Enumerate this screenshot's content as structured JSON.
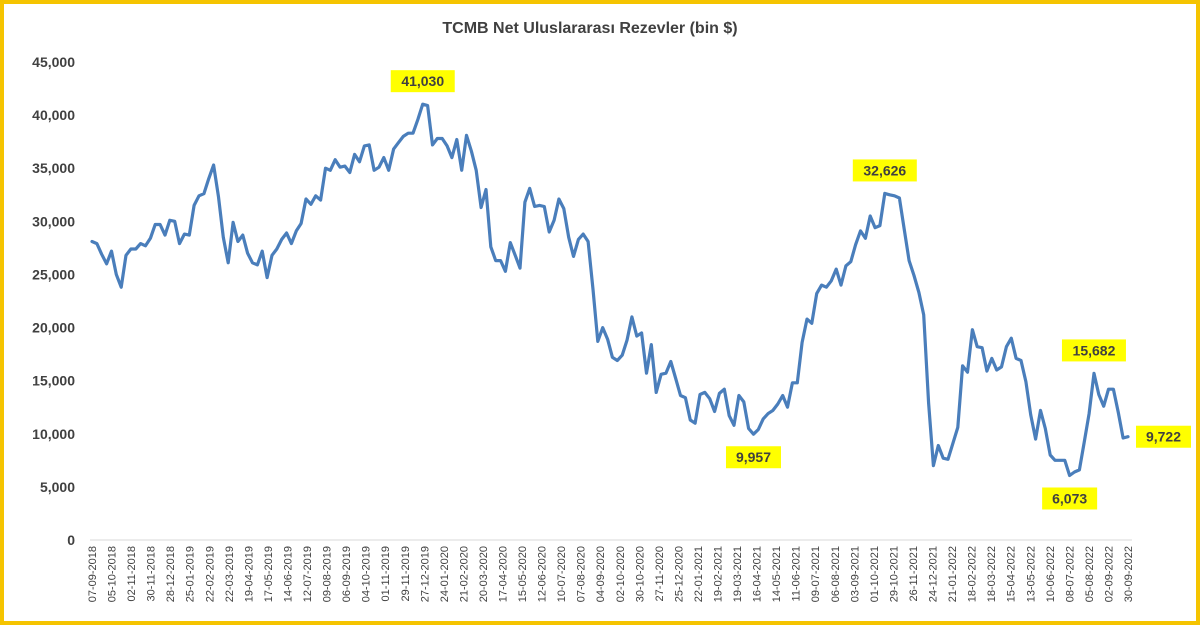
{
  "chart_data": {
    "type": "line",
    "title": "TCMB Net Uluslararası Rezevler (bin $)",
    "ylim": [
      0,
      45000
    ],
    "yticks": [
      0,
      5000,
      10000,
      15000,
      20000,
      25000,
      30000,
      35000,
      40000,
      45000
    ],
    "ytick_labels": [
      "0",
      "5,000",
      "10,000",
      "15,000",
      "20,000",
      "25,000",
      "30,000",
      "35,000",
      "40,000",
      "45,000"
    ],
    "grid": false,
    "series_color": "#4a7ebb",
    "highlight_color": "#ffff00",
    "xtick_labels": [
      "07-09-2018",
      "05-10-2018",
      "02-11-2018",
      "30-11-2018",
      "28-12-2018",
      "25-01-2019",
      "22-02-2019",
      "22-03-2019",
      "19-04-2019",
      "17-05-2019",
      "14-06-2019",
      "12-07-2019",
      "09-08-2019",
      "06-09-2019",
      "04-10-2019",
      "01-11-2019",
      "29-11-2019",
      "27-12-2019",
      "24-01-2020",
      "21-02-2020",
      "20-03-2020",
      "17-04-2020",
      "15-05-2020",
      "12-06-2020",
      "10-07-2020",
      "07-08-2020",
      "04-09-2020",
      "02-10-2020",
      "30-10-2020",
      "27-11-2020",
      "25-12-2020",
      "22-01-2021",
      "19-02-2021",
      "19-03-2021",
      "16-04-2021",
      "14-05-2021",
      "11-06-2021",
      "09-07-2021",
      "06-08-2021",
      "03-09-2021",
      "01-10-2021",
      "29-10-2021",
      "26-11-2021",
      "24-12-2021",
      "21-01-2022",
      "18-02-2022",
      "18-03-2022",
      "15-04-2022",
      "13-05-2022",
      "10-06-2022",
      "08-07-2022",
      "05-08-2022",
      "02-09-2022",
      "30-09-2022"
    ],
    "x_start": "07-09-2018",
    "x_end": "30-09-2022",
    "values": [
      28100,
      27900,
      26900,
      26000,
      27200,
      25000,
      23800,
      26800,
      27400,
      27400,
      27900,
      27700,
      28400,
      29700,
      29700,
      28700,
      30100,
      30000,
      27900,
      28800,
      28700,
      31500,
      32400,
      32600,
      34000,
      35300,
      32300,
      28500,
      26100,
      29900,
      28100,
      28700,
      27000,
      26100,
      25900,
      27200,
      24700,
      26800,
      27400,
      28300,
      28900,
      27900,
      29100,
      29800,
      32100,
      31600,
      32400,
      32000,
      35000,
      34800,
      35800,
      35100,
      35200,
      34600,
      36300,
      35600,
      37100,
      37200,
      34800,
      35100,
      36000,
      34800,
      36800,
      37400,
      38000,
      38300,
      38300,
      39600,
      41030,
      40900,
      37200,
      37800,
      37800,
      37100,
      36000,
      37700,
      34800,
      38100,
      36600,
      34800,
      31300,
      33000,
      27600,
      26300,
      26300,
      25300,
      28000,
      26800,
      25600,
      31800,
      33100,
      31400,
      31500,
      31400,
      29000,
      30100,
      32100,
      31200,
      28500,
      26700,
      28300,
      28800,
      28100,
      23600,
      18700,
      20000,
      18900,
      17200,
      16900,
      17400,
      18800,
      21000,
      19200,
      19500,
      15700,
      18400,
      13900,
      15600,
      15700,
      16800,
      15200,
      13600,
      13400,
      11300,
      11000,
      13700,
      13900,
      13300,
      12100,
      13800,
      14200,
      11700,
      10800,
      13600,
      13000,
      10500,
      9957,
      10400,
      11400,
      11900,
      12200,
      12800,
      13600,
      12500,
      14800,
      14800,
      18600,
      20800,
      20400,
      23200,
      24000,
      23800,
      24400,
      25500,
      24000,
      25800,
      26200,
      27800,
      29100,
      28400,
      30500,
      29400,
      29600,
      32626,
      32500,
      32400,
      32200,
      29200,
      26300,
      24900,
      23300,
      21200,
      12900,
      7000,
      8900,
      7700,
      7600,
      9100,
      10600,
      16400,
      15800,
      19800,
      18200,
      18100,
      15900,
      17100,
      16000,
      16300,
      18200,
      19000,
      17100,
      16900,
      14900,
      11800,
      9500,
      12200,
      10500,
      8000,
      7500,
      7500,
      7500,
      6073,
      6400,
      6600,
      9200,
      11900,
      15682,
      13700,
      12600,
      14200,
      14200,
      12000,
      9600,
      9722
    ],
    "annotations": [
      {
        "text": "41,030",
        "value": 41030,
        "placement": "above"
      },
      {
        "text": "32,626",
        "value": 32626,
        "placement": "above"
      },
      {
        "text": "9,957",
        "value": 9957,
        "placement": "below"
      },
      {
        "text": "15,682",
        "value": 15682,
        "placement": "above"
      },
      {
        "text": "6,073",
        "value": 6073,
        "placement": "below"
      },
      {
        "text": "9,722",
        "value": 9722,
        "placement": "right"
      }
    ]
  }
}
